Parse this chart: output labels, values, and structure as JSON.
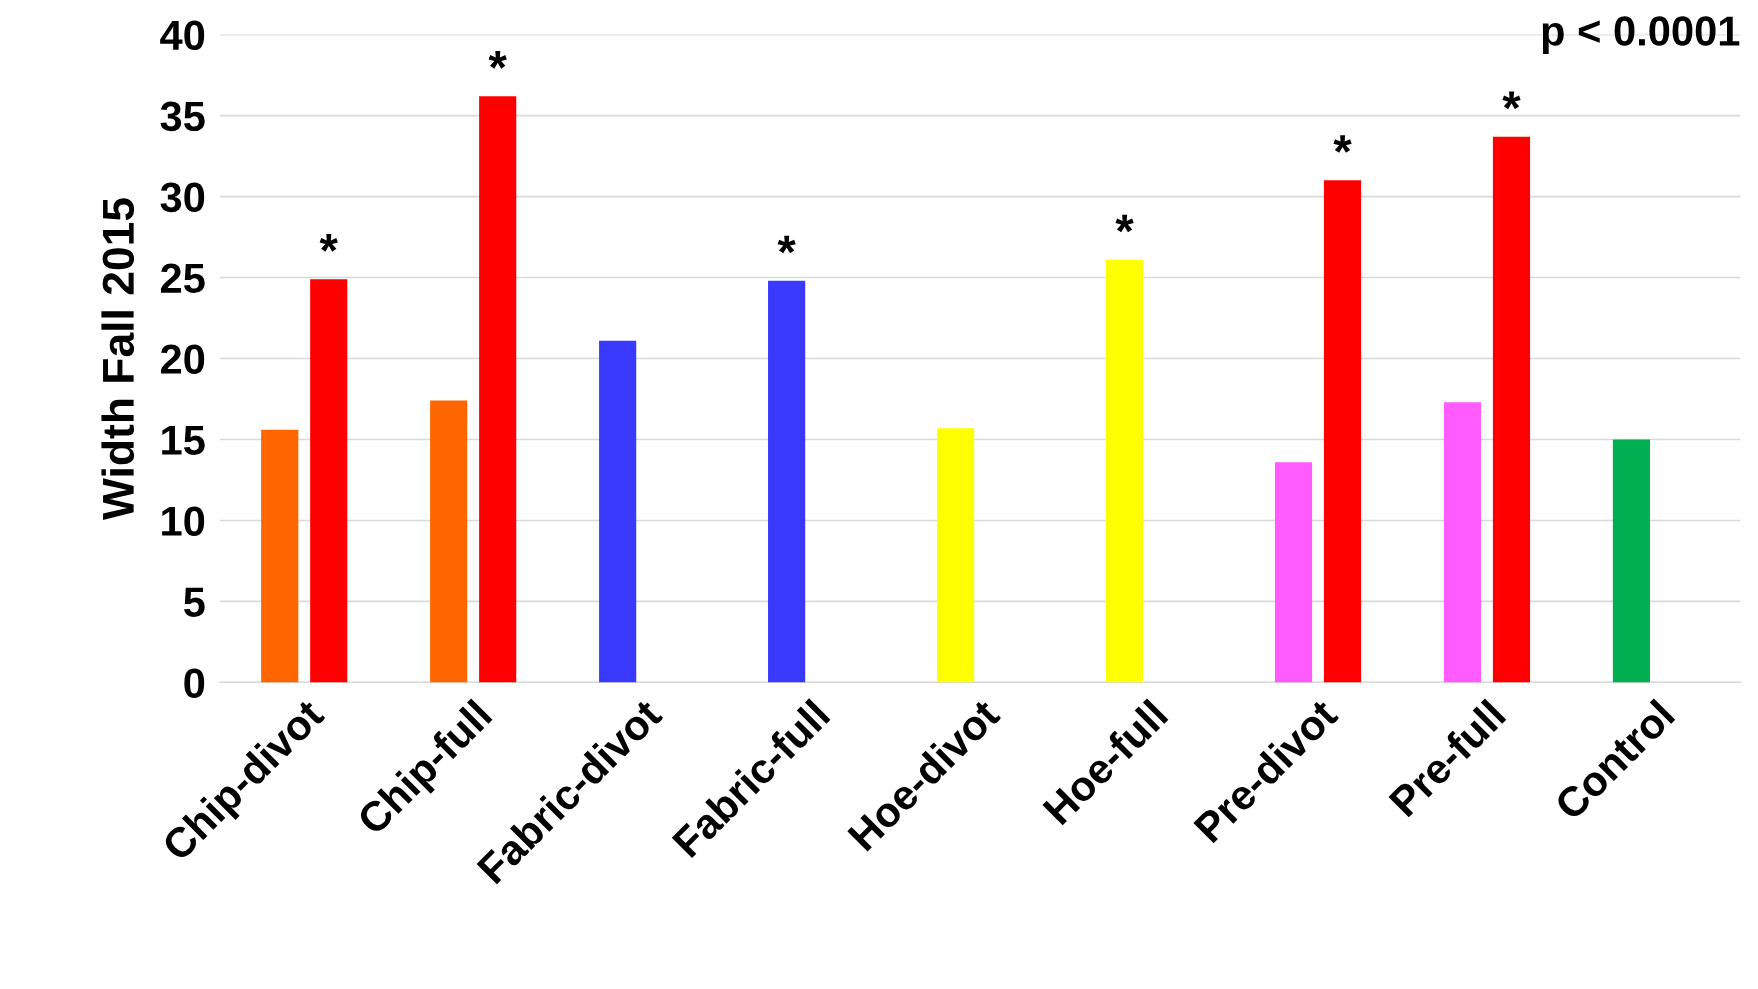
{
  "chart_data": {
    "type": "bar",
    "ylabel": "Width Fall 2015",
    "categories": [
      "Chip-divot",
      "Chip-full",
      "Fabric-divot",
      "Fabric-full",
      "Hoe-divot",
      "Hoe-full",
      "Pre-divot",
      "Pre-full",
      "Control"
    ],
    "series": [
      {
        "colors": [
          "#ff6600",
          "#ff6600",
          "#3a3aff",
          "#3a3aff",
          "#ffff00",
          "#ffff00",
          "#ff5bff",
          "#ff5bff",
          "#00b050"
        ],
        "values": [
          15.6,
          17.4,
          21.1,
          24.8,
          15.7,
          26.1,
          13.6,
          17.3,
          15.0
        ],
        "value_labels": [
          null,
          null,
          null,
          "*",
          null,
          "*",
          null,
          null,
          null
        ]
      },
      {
        "color": "#ff0000",
        "values": [
          24.9,
          36.2,
          null,
          null,
          null,
          null,
          31.0,
          33.7,
          null
        ],
        "value_labels": [
          "*",
          "*",
          null,
          null,
          null,
          null,
          "*",
          "*",
          null
        ]
      }
    ],
    "ylim": [
      0,
      40
    ],
    "yticks": [
      0,
      5,
      10,
      15,
      20,
      25,
      30,
      35,
      40
    ],
    "grid": "y",
    "annotations": [
      "p < 0.0001"
    ]
  }
}
